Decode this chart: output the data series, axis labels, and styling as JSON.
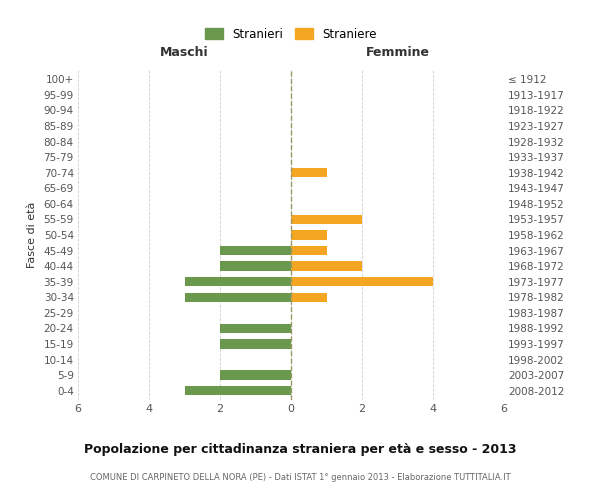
{
  "age_groups": [
    "0-4",
    "5-9",
    "10-14",
    "15-19",
    "20-24",
    "25-29",
    "30-34",
    "35-39",
    "40-44",
    "45-49",
    "50-54",
    "55-59",
    "60-64",
    "65-69",
    "70-74",
    "75-79",
    "80-84",
    "85-89",
    "90-94",
    "95-99",
    "100+"
  ],
  "birth_years": [
    "2008-2012",
    "2003-2007",
    "1998-2002",
    "1993-1997",
    "1988-1992",
    "1983-1987",
    "1978-1982",
    "1973-1977",
    "1968-1972",
    "1963-1967",
    "1958-1962",
    "1953-1957",
    "1948-1952",
    "1943-1947",
    "1938-1942",
    "1933-1937",
    "1928-1932",
    "1923-1927",
    "1918-1922",
    "1913-1917",
    "≤ 1912"
  ],
  "maschi": [
    3,
    2,
    0,
    2,
    2,
    0,
    3,
    3,
    2,
    2,
    0,
    0,
    0,
    0,
    0,
    0,
    0,
    0,
    0,
    0,
    0
  ],
  "femmine": [
    0,
    0,
    0,
    0,
    0,
    0,
    1,
    4,
    2,
    1,
    1,
    2,
    0,
    0,
    1,
    0,
    0,
    0,
    0,
    0,
    0
  ],
  "color_maschi": "#6a994e",
  "color_femmine": "#f4a522",
  "title": "Popolazione per cittadinanza straniera per età e sesso - 2013",
  "subtitle": "COMUNE DI CARPINETO DELLA NORA (PE) - Dati ISTAT 1° gennaio 2013 - Elaborazione TUTTITALIA.IT",
  "ylabel_left": "Fasce di età",
  "xlabel_left": "Maschi",
  "xlabel_right": "Femmine",
  "xlim": 6,
  "legend_stranieri": "Stranieri",
  "legend_straniere": "Straniere",
  "grid_color": "#d0d0d0",
  "background_color": "#ffffff",
  "tick_color": "#888888",
  "label_color": "#555555"
}
